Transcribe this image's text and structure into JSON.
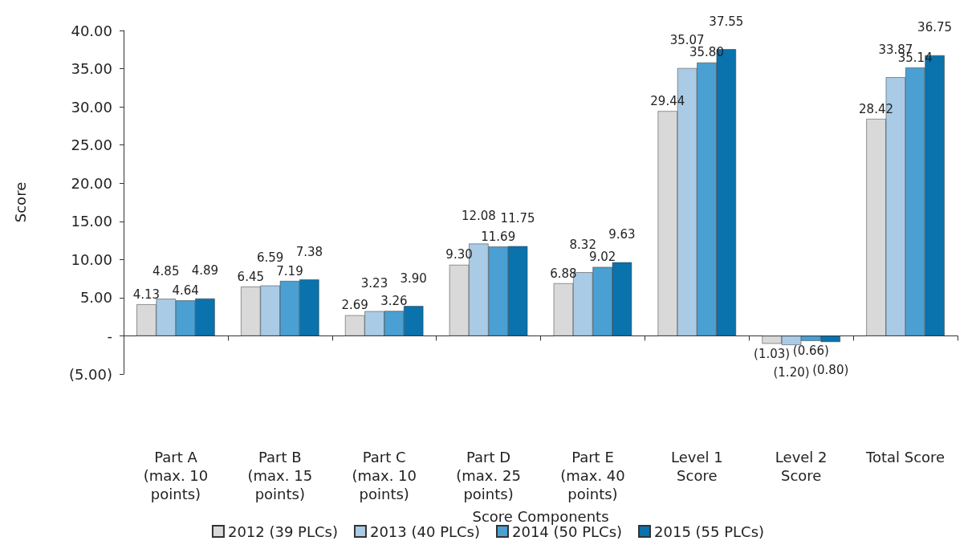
{
  "chart_data": {
    "type": "bar",
    "xlabel": "Score Components",
    "ylabel": "Score",
    "categories": [
      "Part A\n(max. 10\npoints)",
      "Part B\n(max. 15\npoints)",
      "Part C\n(max. 10\npoints)",
      "Part D\n(max. 25\npoints)",
      "Part E\n(max. 40\npoints)",
      "Level 1\nScore",
      "Level 2\nScore",
      "Total Score"
    ],
    "series": [
      {
        "name": "2012 (39 PLCs)",
        "color": "#d9d9d9",
        "values": [
          4.13,
          6.45,
          2.69,
          9.3,
          6.88,
          29.44,
          -1.03,
          28.42
        ],
        "value_labels": [
          "4.13",
          "6.45",
          "2.69",
          "9.30",
          "6.88",
          "29.44",
          "(1.03)",
          "28.42"
        ]
      },
      {
        "name": "2013 (40 PLCs)",
        "color": "#a9cbe6",
        "values": [
          4.85,
          6.59,
          3.23,
          12.08,
          8.32,
          35.07,
          -1.2,
          33.87
        ],
        "value_labels": [
          "4.85",
          "6.59",
          "3.23",
          "12.08",
          "8.32",
          "35.07",
          "(1.20)",
          "33.87"
        ]
      },
      {
        "name": "2014 (50 PLCs)",
        "color": "#4aa0d2",
        "values": [
          4.64,
          7.19,
          3.26,
          11.69,
          9.02,
          35.8,
          -0.66,
          35.14
        ],
        "value_labels": [
          "4.64",
          "7.19",
          "3.26",
          "11.69",
          "9.02",
          "35.80",
          "(0.66)",
          "35.14"
        ]
      },
      {
        "name": "2015 (55 PLCs)",
        "color": "#0a72ad",
        "values": [
          4.89,
          7.38,
          3.9,
          11.75,
          9.63,
          37.55,
          -0.8,
          36.75
        ],
        "value_labels": [
          "4.89",
          "7.38",
          "3.90",
          "11.75",
          "9.63",
          "37.55",
          "(0.80)",
          "36.75"
        ]
      }
    ],
    "ylim": [
      -5,
      40
    ],
    "yticks": [
      {
        "value": -5,
        "label": "(5.00)"
      },
      {
        "value": 0,
        "label": "-"
      },
      {
        "value": 5,
        "label": "5.00"
      },
      {
        "value": 10,
        "label": "10.00"
      },
      {
        "value": 15,
        "label": "15.00"
      },
      {
        "value": 20,
        "label": "20.00"
      },
      {
        "value": 25,
        "label": "25.00"
      },
      {
        "value": 30,
        "label": "30.00"
      },
      {
        "value": 35,
        "label": "35.00"
      },
      {
        "value": 40,
        "label": "40.00"
      }
    ],
    "legend": "bottom"
  }
}
